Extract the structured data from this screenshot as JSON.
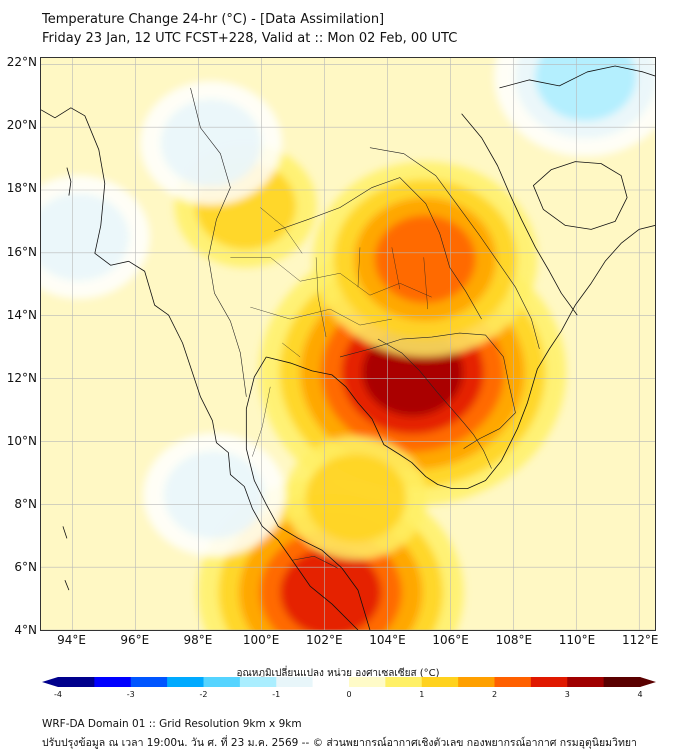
{
  "header": {
    "title_line1": "Temperature Change 24-hr (°C) - [Data Assimilation]",
    "title_line2": "Friday 23 Jan, 12 UTC FCST+228, Valid at :: Mon 02 Feb, 00 UTC"
  },
  "map": {
    "lat_min": 4,
    "lat_max": 22.2,
    "lon_min": 93.0,
    "lon_max": 112.5,
    "lat_labels": [
      "4°N",
      "6°N",
      "8°N",
      "10°N",
      "12°N",
      "14°N",
      "16°N",
      "18°N",
      "20°N",
      "22°N"
    ],
    "lat_values": [
      4,
      6,
      8,
      10,
      12,
      14,
      16,
      18,
      20,
      22
    ],
    "lon_labels": [
      "94°E",
      "96°E",
      "98°E",
      "100°E",
      "102°E",
      "104°E",
      "106°E",
      "108°E",
      "110°E",
      "112°E"
    ],
    "lon_values": [
      94,
      96,
      98,
      100,
      102,
      104,
      106,
      108,
      110,
      112
    ],
    "anomaly_hotspots": [
      {
        "name": "cambodia-warm",
        "lon": 104.8,
        "lat": 12.2,
        "value": 3.0
      },
      {
        "name": "northeast-thailand-warm",
        "lon": 105.2,
        "lat": 15.8,
        "value": 1.9
      },
      {
        "name": "malaysia-warm",
        "lon": 102.2,
        "lat": 5.2,
        "value": 2.6
      },
      {
        "name": "gulf-warm",
        "lon": 103.0,
        "lat": 8.2,
        "value": 1.2
      },
      {
        "name": "north-thailand-warm",
        "lon": 99.5,
        "lat": 17.5,
        "value": 1.0
      },
      {
        "name": "hainan-cool",
        "lon": 110.3,
        "lat": 21.6,
        "value": -1.6
      },
      {
        "name": "myanmar-cool",
        "lon": 98.4,
        "lat": 19.5,
        "value": -1.2
      },
      {
        "name": "andaman-coast-cool",
        "lon": 98.5,
        "lat": 8.3,
        "value": -1.1
      },
      {
        "name": "bay-of-bengal-cool",
        "lon": 94.2,
        "lat": 16.5,
        "value": -0.8
      }
    ]
  },
  "colorbar": {
    "title": "อุณหภูมิเปลี่ยนแปลง หน่วย องศาเซลเซียส (°C)",
    "tick_labels": [
      "-4",
      "-3",
      "-2",
      "-1",
      "0",
      "1",
      "2",
      "3",
      "4"
    ],
    "tick_values": [
      -4,
      -3,
      -2,
      -1,
      0,
      1,
      2,
      3,
      4
    ],
    "min": -4,
    "max": 4,
    "colors": [
      "#00008c",
      "#0000ff",
      "#0055ff",
      "#00aaff",
      "#55d4ff",
      "#aaeeff",
      "#e8f6fa",
      "#ffffff",
      "#fffbc8",
      "#fff066",
      "#ffd21e",
      "#ffa000",
      "#ff6000",
      "#e01800",
      "#a00000",
      "#5a0000"
    ]
  },
  "footer": {
    "line1": "WRF-DA Domain 01 :: Grid Resolution 9km x 9km",
    "line2": "ปรับปรุงข้อมูล ณ เวลา 19:00น. วัน ศ. ที่ 23 ม.ค. 2569 -- © ส่วนพยากรณ์อากาศเชิงตัวเลข กองพยากรณ์อากาศ กรมอุตุนิยมวิทยา"
  }
}
